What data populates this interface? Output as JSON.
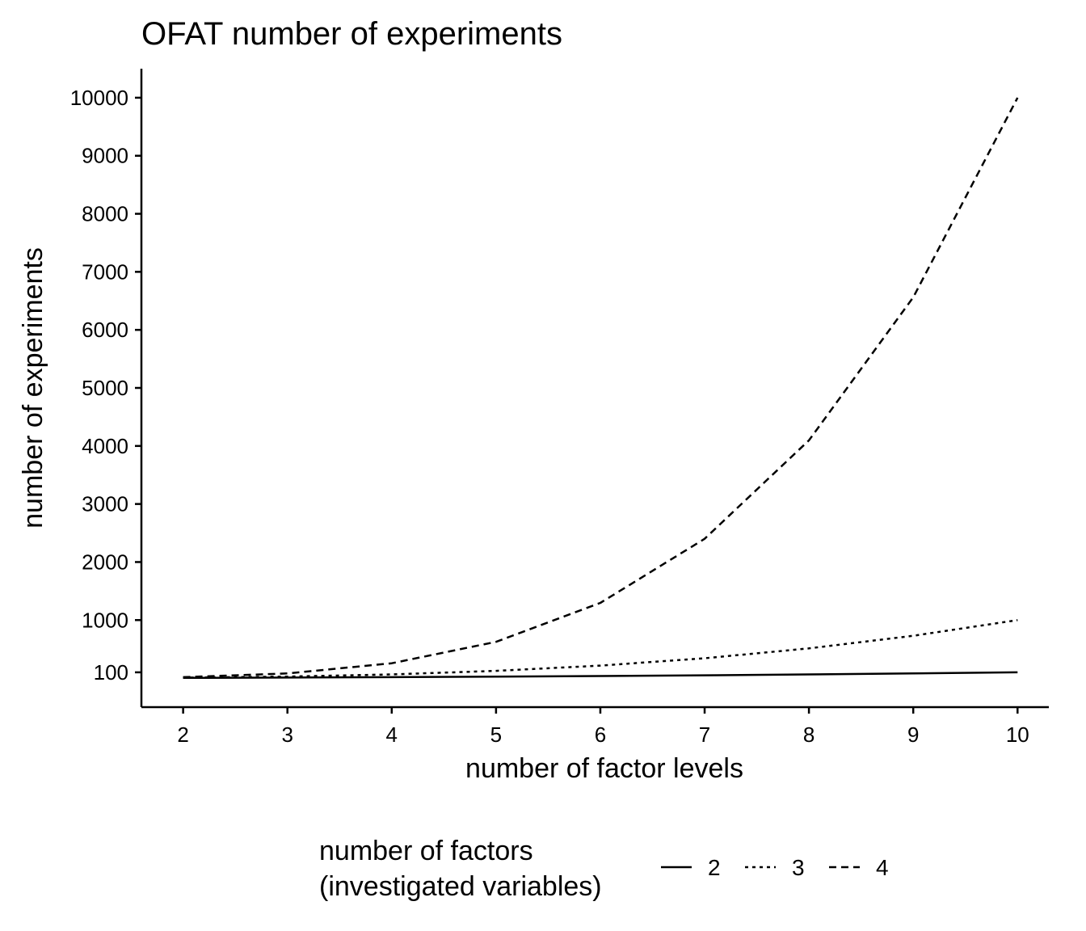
{
  "chart_data": {
    "type": "line",
    "title": "OFAT number of experiments",
    "xlabel": "number of factor levels",
    "ylabel": "number of experiments",
    "x_ticks": [
      2,
      3,
      4,
      5,
      6,
      7,
      8,
      9,
      10
    ],
    "y_ticks": [
      100,
      1000,
      2000,
      3000,
      4000,
      5000,
      6000,
      7000,
      8000,
      9000,
      10000
    ],
    "xlim": [
      1.6,
      10.3
    ],
    "ylim": [
      -500,
      10500
    ],
    "grid": false,
    "legend": {
      "title_lines": [
        "number of factors",
        "(investigated variables)"
      ],
      "position": "bottom",
      "entries": [
        "2",
        "3",
        "4"
      ]
    },
    "series": [
      {
        "name": "2",
        "linestyle": "solid",
        "x": [
          2,
          3,
          4,
          5,
          6,
          7,
          8,
          9,
          10
        ],
        "y": [
          4,
          9,
          16,
          25,
          36,
          49,
          64,
          81,
          100
        ]
      },
      {
        "name": "3",
        "linestyle": "dotted",
        "x": [
          2,
          3,
          4,
          5,
          6,
          7,
          8,
          9,
          10
        ],
        "y": [
          8,
          27,
          64,
          125,
          216,
          343,
          512,
          729,
          1000
        ]
      },
      {
        "name": "4",
        "linestyle": "dashed",
        "x": [
          2,
          3,
          4,
          5,
          6,
          7,
          8,
          9,
          10
        ],
        "y": [
          16,
          81,
          256,
          625,
          1296,
          2401,
          4096,
          6561,
          10000
        ]
      }
    ],
    "colors": {
      "line": "#000000",
      "axis": "#000000",
      "background": "#ffffff"
    }
  }
}
